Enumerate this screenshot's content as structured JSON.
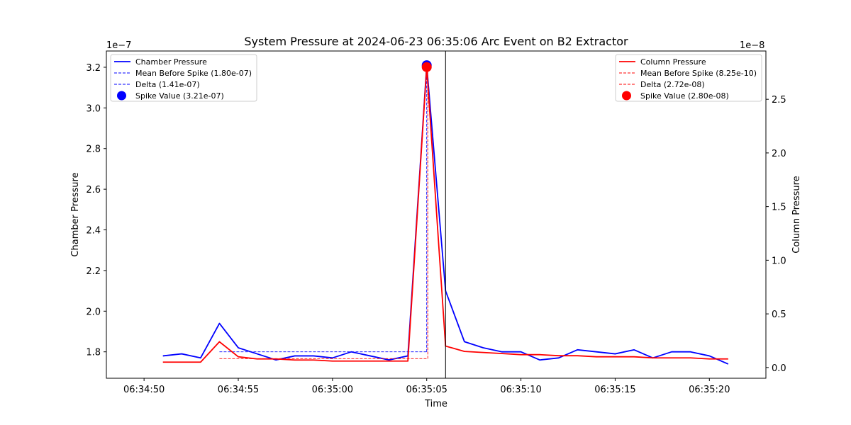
{
  "chart_data": {
    "type": "line",
    "title": "System Pressure at 2024-06-23 06:35:06 Arc Event on B2 Extractor",
    "xlabel": "Time",
    "ylabel_left": "Chamber Pressure",
    "ylabel_right": "Column Pressure",
    "y_left_offset_label": "1e−7",
    "y_right_offset_label": "1e−8",
    "x_ticks": [
      "06:34:50",
      "06:34:55",
      "06:35:00",
      "06:35:05",
      "06:35:10",
      "06:35:15",
      "06:35:20"
    ],
    "x_tick_seconds": [
      50,
      55,
      60,
      65,
      70,
      75,
      80
    ],
    "y_left_ticks": [
      "1.8",
      "2.0",
      "2.2",
      "2.4",
      "2.6",
      "2.8",
      "3.0",
      "3.2"
    ],
    "y_left_tick_values": [
      1.8,
      2.0,
      2.2,
      2.4,
      2.6,
      2.8,
      3.0,
      3.2
    ],
    "y_right_ticks": [
      "0.0",
      "0.5",
      "1.0",
      "1.5",
      "2.0",
      "2.5"
    ],
    "y_right_tick_values": [
      0.0,
      0.5,
      1.0,
      1.5,
      2.0,
      2.5
    ],
    "x_seconds": [
      51,
      52,
      53,
      54,
      55,
      56,
      57,
      58,
      59,
      60,
      61,
      62,
      63,
      64,
      65,
      66,
      67,
      68,
      69,
      70,
      71,
      72,
      73,
      74,
      75,
      76,
      77,
      78,
      79,
      80,
      81
    ],
    "chamber_pressure_e7": [
      1.78,
      1.79,
      1.77,
      1.94,
      1.82,
      1.79,
      1.76,
      1.78,
      1.78,
      1.77,
      1.8,
      1.78,
      1.76,
      1.78,
      3.21,
      2.1,
      1.85,
      1.82,
      1.8,
      1.8,
      1.76,
      1.77,
      1.81,
      1.8,
      1.79,
      1.81,
      1.77,
      1.8,
      1.8,
      1.78,
      1.74
    ],
    "column_pressure_e8": [
      0.05,
      0.05,
      0.05,
      0.24,
      0.1,
      0.08,
      0.08,
      0.07,
      0.07,
      0.06,
      0.06,
      0.06,
      0.06,
      0.06,
      2.8,
      0.2,
      0.15,
      0.14,
      0.13,
      0.12,
      0.12,
      0.11,
      0.11,
      0.1,
      0.1,
      0.1,
      0.09,
      0.09,
      0.09,
      0.08,
      0.08
    ],
    "event_line_seconds": 66,
    "spike_seconds": 65,
    "chamber_mean_line": {
      "start_seconds": 54,
      "end_seconds": 65,
      "value_e7": 1.8,
      "delta_top_e7": 3.21
    },
    "column_mean_line": {
      "start_seconds": 54,
      "end_seconds": 65,
      "value_e8": 0.0825,
      "delta_top_e8": 2.8
    },
    "chamber_spike_e7": 3.21,
    "column_spike_e8": 2.8,
    "legend_left": [
      {
        "label": "Chamber Pressure",
        "kind": "line"
      },
      {
        "label": "Mean Before Spike (1.80e-07)",
        "kind": "dashed"
      },
      {
        "label": "Delta (1.41e-07)",
        "kind": "dashed"
      },
      {
        "label": "Spike Value (3.21e-07)",
        "kind": "marker"
      }
    ],
    "legend_right": [
      {
        "label": "Column Pressure",
        "kind": "line"
      },
      {
        "label": "Mean Before Spike (8.25e-10)",
        "kind": "dashed"
      },
      {
        "label": "Delta (2.72e-08)",
        "kind": "dashed"
      },
      {
        "label": "Spike Value (2.80e-08)",
        "kind": "marker"
      }
    ],
    "colors": {
      "chamber": "#0000ff",
      "column": "#ff0000",
      "event_line": "#000000"
    },
    "legend_placement": {
      "left_series": "upper-left",
      "right_series": "upper-right"
    },
    "grid": false
  }
}
